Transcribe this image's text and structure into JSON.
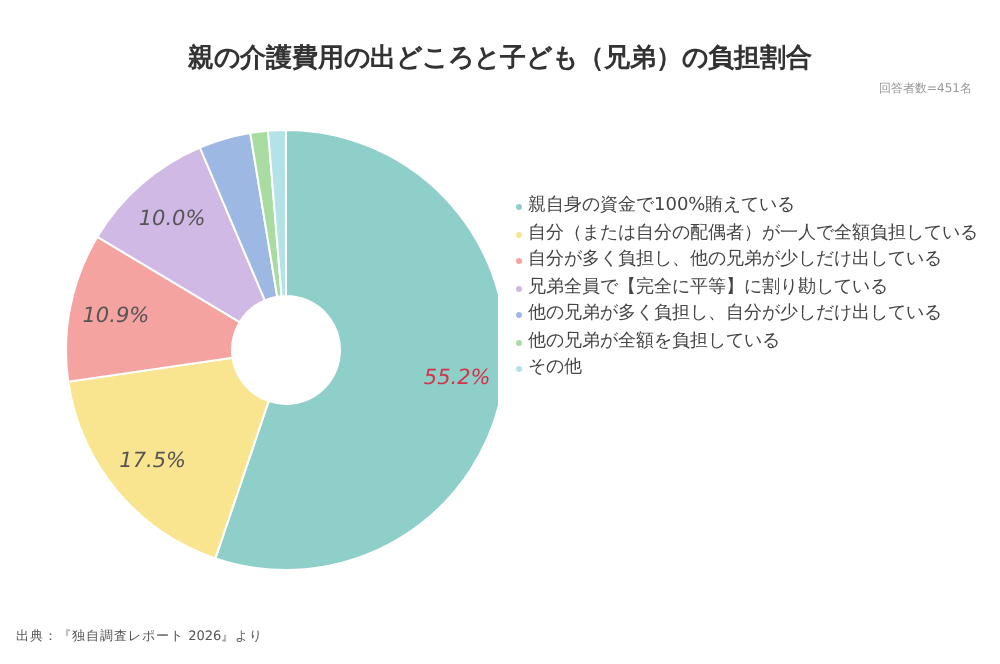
{
  "chart_data": {
    "type": "donut",
    "title": "親の介護費用の出どころと子ども（兄弟）の負担割合",
    "subtitle": "回答者数=451名",
    "categories": [
      "親自身の資金で100%賄えている",
      "自分（または自分の配偶者）が一人で全額負担している",
      "自分が多く負担し、他の兄弟が少しだけ出している",
      "兄弟全員で【完全に平等】に割り勘している",
      "他の兄弟が多く負担し、自分が少しだけ出している",
      "他の兄弟が全額を負担している",
      "その他"
    ],
    "values": [
      55.2,
      17.5,
      10.9,
      10.0,
      3.8,
      1.3,
      1.3
    ],
    "colors": [
      "#8ecfc9",
      "#f9e58f",
      "#f4a3a0",
      "#d1b9e6",
      "#9db9e3",
      "#a8dca0",
      "#b3e3e6"
    ],
    "value_labels": [
      "55.2%",
      "17.5%",
      "10.9%",
      "10.0%",
      null,
      null,
      null
    ],
    "legend": "right",
    "annotations": [
      "出典：『独自調査レポート 2026』より"
    ]
  }
}
